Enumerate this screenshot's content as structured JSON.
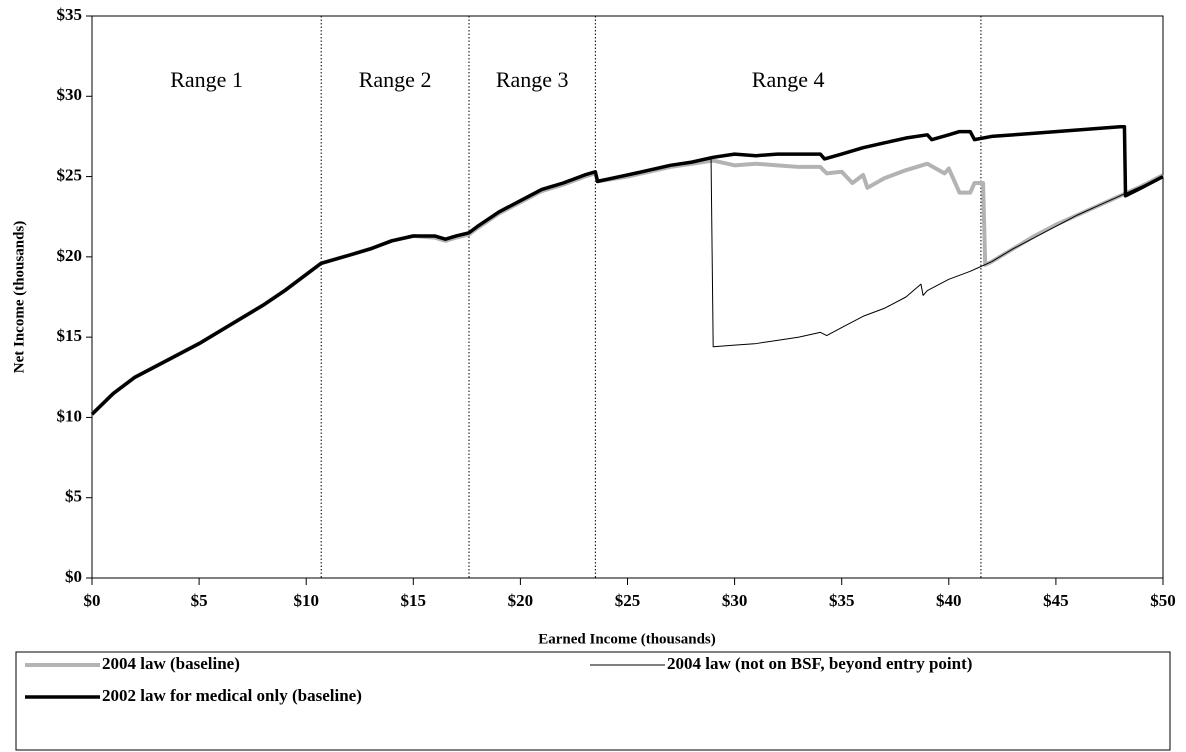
{
  "chart_data": {
    "type": "line",
    "x_label": "Earned Income (thousands)",
    "y_label": "Net Income (thousands)",
    "xlim": [
      0,
      50
    ],
    "ylim": [
      0,
      35
    ],
    "xticks": [
      {
        "value": 0,
        "label": "$0"
      },
      {
        "value": 5,
        "label": "$5"
      },
      {
        "value": 10,
        "label": "$10"
      },
      {
        "value": 15,
        "label": "$15"
      },
      {
        "value": 20,
        "label": "$20"
      },
      {
        "value": 25,
        "label": "$25"
      },
      {
        "value": 30,
        "label": "$30"
      },
      {
        "value": 35,
        "label": "$35"
      },
      {
        "value": 40,
        "label": "$40"
      },
      {
        "value": 45,
        "label": "$45"
      },
      {
        "value": 50,
        "label": "$50"
      }
    ],
    "yticks": [
      {
        "value": 0,
        "label": "$0"
      },
      {
        "value": 5,
        "label": "$5"
      },
      {
        "value": 10,
        "label": "$10"
      },
      {
        "value": 15,
        "label": "$15"
      },
      {
        "value": 20,
        "label": "$20"
      },
      {
        "value": 25,
        "label": "$25"
      },
      {
        "value": 30,
        "label": "$30"
      },
      {
        "value": 35,
        "label": "$35"
      }
    ],
    "range_dividers": [
      10.7,
      17.6,
      23.5,
      41.5
    ],
    "range_labels": [
      "Range 1",
      "Range 2",
      "Range 3",
      "Range 4"
    ],
    "legend": "bottom",
    "series": [
      {
        "name": "2004 law (baseline)",
        "color": "#b3b3b3",
        "width": 4,
        "x": [
          0,
          1,
          2,
          3,
          4,
          5,
          6,
          7,
          8,
          9,
          10,
          10.7,
          12,
          13,
          14,
          15,
          16,
          16.5,
          17,
          17.6,
          18,
          19,
          20,
          21,
          22,
          23,
          23.5,
          23.6,
          25,
          26,
          27,
          28,
          29,
          30,
          31,
          32,
          33,
          34,
          34.3,
          35,
          35.5,
          36,
          36.2,
          37,
          38,
          39,
          39.8,
          40,
          40.5,
          41,
          41.2,
          41.6,
          41.7,
          42,
          43,
          44,
          45,
          46,
          47,
          48,
          49,
          50
        ],
        "values": [
          10.2,
          11.5,
          12.5,
          13.2,
          13.9,
          14.6,
          15.4,
          16.2,
          17,
          17.9,
          18.9,
          19.6,
          20.1,
          20.5,
          21,
          21.3,
          21.2,
          21,
          21.2,
          21.4,
          21.8,
          22.7,
          23.4,
          24.1,
          24.5,
          25,
          25.2,
          24.7,
          25,
          25.3,
          25.6,
          25.8,
          26,
          25.7,
          25.8,
          25.7,
          25.6,
          25.6,
          25.2,
          25.3,
          24.6,
          25.1,
          24.3,
          24.9,
          25.4,
          25.8,
          25.2,
          25.5,
          24,
          24,
          24.6,
          24.6,
          19.5,
          19.7,
          20.5,
          21.3,
          22,
          22.6,
          23.2,
          23.8,
          24.4,
          25.1
        ]
      },
      {
        "name": "2004 law (not on BSF, beyond entry point)",
        "color": "#000000",
        "width": 1,
        "x": [
          28.9,
          29,
          30,
          31,
          32,
          33,
          34,
          34.3,
          35,
          36,
          37,
          38,
          38.7,
          38.8,
          39,
          40,
          41,
          41.5,
          42,
          43,
          44,
          45,
          46,
          47,
          48,
          49,
          50
        ],
        "values": [
          26.2,
          14.4,
          14.5,
          14.6,
          14.8,
          15,
          15.3,
          15.1,
          15.6,
          16.3,
          16.8,
          17.5,
          18.3,
          17.6,
          17.9,
          18.6,
          19.1,
          19.4,
          19.7,
          20.5,
          21.2,
          21.9,
          22.6,
          23.2,
          23.8,
          24.4,
          25
        ]
      },
      {
        "name": "2002 law for medical only (baseline)",
        "color": "#000000",
        "width": 3.5,
        "x": [
          0,
          1,
          2,
          3,
          4,
          5,
          6,
          7,
          8,
          9,
          10,
          10.7,
          12,
          13,
          14,
          15,
          16,
          16.5,
          17,
          17.6,
          18,
          19,
          20,
          21,
          22,
          23,
          23.5,
          23.6,
          25,
          26,
          27,
          28,
          29,
          30,
          31,
          32,
          33,
          34,
          34.2,
          35,
          36,
          37,
          38,
          39,
          39.2,
          40,
          40.5,
          41,
          41.2,
          42,
          43,
          44,
          45,
          46,
          47,
          48,
          48.2,
          48.25,
          49,
          50
        ],
        "values": [
          10.2,
          11.5,
          12.5,
          13.2,
          13.9,
          14.6,
          15.4,
          16.2,
          17,
          17.9,
          18.9,
          19.6,
          20.1,
          20.5,
          21,
          21.3,
          21.3,
          21.1,
          21.3,
          21.5,
          21.9,
          22.8,
          23.5,
          24.2,
          24.6,
          25.1,
          25.3,
          24.7,
          25.1,
          25.4,
          25.7,
          25.9,
          26.2,
          26.4,
          26.3,
          26.4,
          26.4,
          26.4,
          26.1,
          26.4,
          26.8,
          27.1,
          27.4,
          27.6,
          27.3,
          27.6,
          27.8,
          27.8,
          27.3,
          27.5,
          27.6,
          27.7,
          27.8,
          27.9,
          28,
          28.1,
          28.1,
          23.8,
          24.3,
          25
        ]
      }
    ]
  }
}
